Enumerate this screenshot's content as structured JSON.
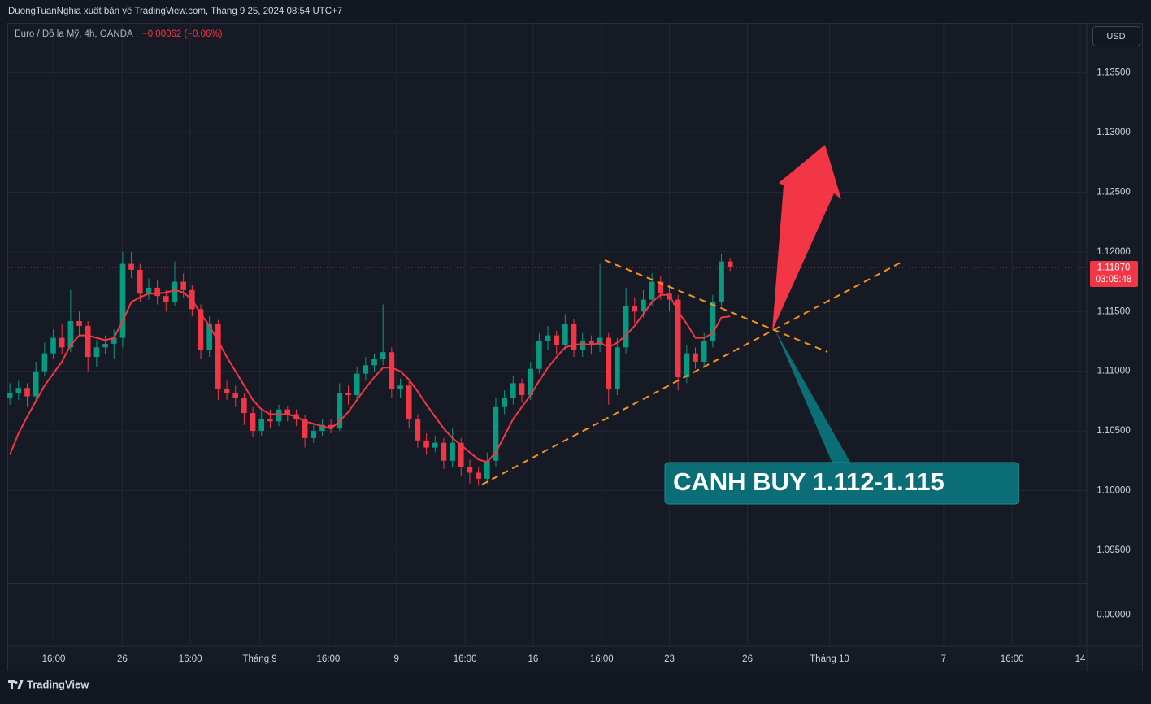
{
  "header": {
    "publisher": "DuongTuanNghia xuất bản về TradingView.com, Tháng 9 25, 2024 08:54 UTC+7",
    "symbol": "Euro / Đô la Mỹ, 4h, OANDA",
    "change": "−0.00062 (−0.06%)",
    "currency_button": "USD"
  },
  "footer": {
    "brand": "TradingView"
  },
  "chart_data": {
    "type": "candlestick",
    "up_color": "#089981",
    "down_color": "#f23645",
    "ma_color": "#f23645",
    "grid": true,
    "ohlc": [
      [
        1.1078,
        1.109,
        1.1072,
        1.1082
      ],
      [
        1.1082,
        1.1092,
        1.1076,
        1.1086
      ],
      [
        1.1086,
        1.109,
        1.107,
        1.1079
      ],
      [
        1.1079,
        1.1108,
        1.1075,
        1.11
      ],
      [
        1.11,
        1.1124,
        1.1096,
        1.1115
      ],
      [
        1.1115,
        1.1135,
        1.111,
        1.1128
      ],
      [
        1.1128,
        1.114,
        1.1114,
        1.112
      ],
      [
        1.112,
        1.1168,
        1.1116,
        1.1142
      ],
      [
        1.1142,
        1.115,
        1.113,
        1.1138
      ],
      [
        1.1138,
        1.1142,
        1.11,
        1.1112
      ],
      [
        1.1112,
        1.1126,
        1.1104,
        1.112
      ],
      [
        1.112,
        1.113,
        1.1114,
        1.1123
      ],
      [
        1.1123,
        1.1135,
        1.111,
        1.1128
      ],
      [
        1.1128,
        1.12,
        1.112,
        1.119
      ],
      [
        1.119,
        1.12,
        1.1178,
        1.1185
      ],
      [
        1.1185,
        1.119,
        1.1158,
        1.1165
      ],
      [
        1.1165,
        1.1178,
        1.116,
        1.117
      ],
      [
        1.117,
        1.1176,
        1.1156,
        1.1163
      ],
      [
        1.1163,
        1.1168,
        1.115,
        1.1158
      ],
      [
        1.1158,
        1.1192,
        1.1155,
        1.1175
      ],
      [
        1.1175,
        1.1182,
        1.1162,
        1.1168
      ],
      [
        1.1168,
        1.1172,
        1.1146,
        1.1152
      ],
      [
        1.1152,
        1.1156,
        1.111,
        1.1118
      ],
      [
        1.1118,
        1.1146,
        1.1112,
        1.114
      ],
      [
        1.114,
        1.1143,
        1.1076,
        1.1085
      ],
      [
        1.1085,
        1.1092,
        1.1076,
        1.1082
      ],
      [
        1.1082,
        1.1088,
        1.107,
        1.1078
      ],
      [
        1.1078,
        1.1082,
        1.1055,
        1.1065
      ],
      [
        1.1065,
        1.107,
        1.1045,
        1.105
      ],
      [
        1.105,
        1.1066,
        1.1046,
        1.106
      ],
      [
        1.106,
        1.1068,
        1.1052,
        1.1058
      ],
      [
        1.1058,
        1.1072,
        1.1054,
        1.1068
      ],
      [
        1.1068,
        1.1071,
        1.1058,
        1.1064
      ],
      [
        1.1064,
        1.1068,
        1.1054,
        1.106
      ],
      [
        1.106,
        1.1063,
        1.1036,
        1.1044
      ],
      [
        1.1044,
        1.1056,
        1.104,
        1.105
      ],
      [
        1.105,
        1.106,
        1.1046,
        1.1055
      ],
      [
        1.1055,
        1.106,
        1.1048,
        1.1052
      ],
      [
        1.1052,
        1.109,
        1.105,
        1.1082
      ],
      [
        1.1082,
        1.1088,
        1.1072,
        1.108
      ],
      [
        1.108,
        1.1104,
        1.1076,
        1.1098
      ],
      [
        1.1098,
        1.1112,
        1.1092,
        1.1105
      ],
      [
        1.1105,
        1.1115,
        1.11,
        1.111
      ],
      [
        1.111,
        1.1156,
        1.1105,
        1.1116
      ],
      [
        1.1116,
        1.112,
        1.1078,
        1.1085
      ],
      [
        1.1085,
        1.1094,
        1.1078,
        1.1088
      ],
      [
        1.1088,
        1.1092,
        1.1052,
        1.106
      ],
      [
        1.106,
        1.1064,
        1.1036,
        1.1042
      ],
      [
        1.1042,
        1.1048,
        1.103,
        1.1036
      ],
      [
        1.1036,
        1.1046,
        1.1032,
        1.104
      ],
      [
        1.104,
        1.1044,
        1.1018,
        1.1025
      ],
      [
        1.1025,
        1.1052,
        1.102,
        1.104
      ],
      [
        1.104,
        1.1044,
        1.1012,
        1.102
      ],
      [
        1.102,
        1.1026,
        1.1006,
        1.1015
      ],
      [
        1.1015,
        1.102,
        1.1004,
        1.101
      ],
      [
        1.101,
        1.1032,
        1.1006,
        1.1025
      ],
      [
        1.1025,
        1.1078,
        1.102,
        1.107
      ],
      [
        1.107,
        1.1084,
        1.1064,
        1.1078
      ],
      [
        1.1078,
        1.1096,
        1.1072,
        1.109
      ],
      [
        1.109,
        1.1094,
        1.1074,
        1.108
      ],
      [
        1.108,
        1.1108,
        1.1076,
        1.1102
      ],
      [
        1.1102,
        1.1132,
        1.1098,
        1.1125
      ],
      [
        1.1125,
        1.1138,
        1.1118,
        1.113
      ],
      [
        1.113,
        1.1134,
        1.1114,
        1.1122
      ],
      [
        1.1122,
        1.1148,
        1.1118,
        1.114
      ],
      [
        1.114,
        1.1144,
        1.1112,
        1.1118
      ],
      [
        1.1118,
        1.1132,
        1.1112,
        1.1125
      ],
      [
        1.1125,
        1.113,
        1.1114,
        1.1122
      ],
      [
        1.1122,
        1.119,
        1.1116,
        1.1128
      ],
      [
        1.1128,
        1.1132,
        1.1072,
        1.1085
      ],
      [
        1.1085,
        1.1128,
        1.108,
        1.112
      ],
      [
        1.112,
        1.117,
        1.1115,
        1.1155
      ],
      [
        1.1155,
        1.1162,
        1.114,
        1.115
      ],
      [
        1.115,
        1.1168,
        1.1145,
        1.116
      ],
      [
        1.116,
        1.1182,
        1.1155,
        1.1175
      ],
      [
        1.1175,
        1.118,
        1.116,
        1.1165
      ],
      [
        1.1165,
        1.1172,
        1.115,
        1.116
      ],
      [
        1.116,
        1.1164,
        1.1084,
        1.1095
      ],
      [
        1.1095,
        1.1122,
        1.109,
        1.1115
      ],
      [
        1.1115,
        1.112,
        1.1102,
        1.1108
      ],
      [
        1.1108,
        1.1132,
        1.1104,
        1.1125
      ],
      [
        1.1125,
        1.1164,
        1.112,
        1.1158
      ],
      [
        1.1158,
        1.1198,
        1.1154,
        1.1192
      ],
      [
        1.1192,
        1.1195,
        1.1184,
        1.1187
      ]
    ],
    "ma": [
      1.103,
      1.1048,
      1.1062,
      1.1075,
      1.1088,
      1.1098,
      1.1108,
      1.1122,
      1.113,
      1.113,
      1.1128,
      1.1126,
      1.1128,
      1.1142,
      1.1158,
      1.1162,
      1.1165,
      1.1165,
      1.1166,
      1.1168,
      1.1166,
      1.116,
      1.1148,
      1.1138,
      1.1125,
      1.1112,
      1.11,
      1.1088,
      1.1076,
      1.1068,
      1.1064,
      1.1064,
      1.1064,
      1.1062,
      1.1058,
      1.1056,
      1.1054,
      1.1052,
      1.1058,
      1.1066,
      1.1076,
      1.1086,
      1.1095,
      1.1103,
      1.1103,
      1.11,
      1.1093,
      1.1083,
      1.1072,
      1.1062,
      1.1052,
      1.1044,
      1.1038,
      1.1032,
      1.1026,
      1.1024,
      1.1032,
      1.1046,
      1.106,
      1.107,
      1.108,
      1.1092,
      1.1103,
      1.1112,
      1.112,
      1.1122,
      1.1123,
      1.1122,
      1.1124,
      1.112,
      1.1124,
      1.113,
      1.1138,
      1.1148,
      1.1158,
      1.1164,
      1.1164,
      1.115,
      1.114,
      1.1128,
      1.1128,
      1.1132,
      1.1145,
      1.1146
    ],
    "xlim": [
      -0.2,
      124.1
    ],
    "xticks": [
      {
        "value": 5.05,
        "label": "16:00"
      },
      {
        "value": 12.95,
        "label": "26"
      },
      {
        "value": 20.8,
        "label": "16:00"
      },
      {
        "value": 28.8,
        "label": "Tháng 9"
      },
      {
        "value": 36.7,
        "label": "16:00"
      },
      {
        "value": 44.55,
        "label": "9"
      },
      {
        "value": 52.45,
        "label": "16:00"
      },
      {
        "value": 60.3,
        "label": "16"
      },
      {
        "value": 68.2,
        "label": "16:00"
      },
      {
        "value": 76,
        "label": "23"
      },
      {
        "value": 85,
        "label": "26"
      },
      {
        "value": 94.45,
        "label": "Tháng 10"
      },
      {
        "value": 107.6,
        "label": "7"
      },
      {
        "value": 115.5,
        "label": "16:00"
      },
      {
        "value": 123.35,
        "label": "14"
      }
    ],
    "ylim": [
      1.0922,
      1.1392
    ],
    "yticks": [
      {
        "value": 1.095,
        "label": "1.09500"
      },
      {
        "value": 1.1,
        "label": "1.10000"
      },
      {
        "value": 1.105,
        "label": "1.10500"
      },
      {
        "value": 1.11,
        "label": "1.11000"
      },
      {
        "value": 1.115,
        "label": "1.11500"
      },
      {
        "value": 1.12,
        "label": "1.12000"
      },
      {
        "value": 1.125,
        "label": "1.12500"
      },
      {
        "value": 1.13,
        "label": "1.13000"
      },
      {
        "value": 1.135,
        "label": "1.13500"
      }
    ],
    "last_price": {
      "value": 1.1187,
      "label": "1.11870"
    },
    "countdown": "03:05:48",
    "annotation": "CANH BUY 1.112-1.115",
    "lower_pane": {
      "ylim": [
        -1,
        1
      ],
      "yticks": [
        {
          "value": 0,
          "label": "0.00000"
        }
      ]
    }
  }
}
